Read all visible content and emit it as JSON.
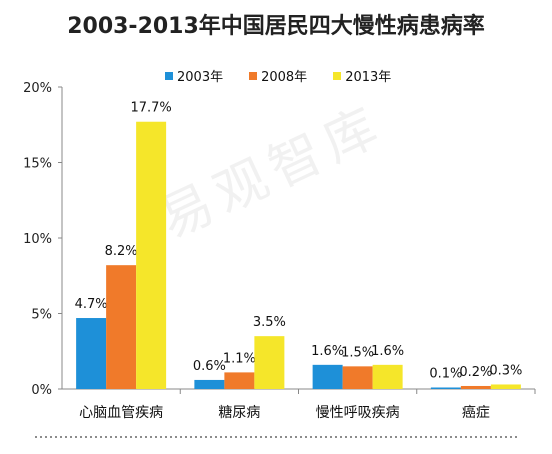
{
  "chart_data": {
    "type": "bar",
    "title": "2003-2013年中国居民四大慢性病患病率",
    "categories": [
      "心脑血管疾病",
      "糖尿病",
      "慢性呼吸疾病",
      "癌症"
    ],
    "series": [
      {
        "name": "2003年",
        "color": "#1e90d8",
        "values": [
          4.7,
          0.6,
          1.6,
          0.1
        ]
      },
      {
        "name": "2008年",
        "color": "#f07a2a",
        "values": [
          8.2,
          1.1,
          1.5,
          0.2
        ]
      },
      {
        "name": "2013年",
        "color": "#f5e62a",
        "values": [
          17.7,
          3.5,
          1.6,
          0.3
        ]
      }
    ],
    "data_labels": [
      [
        "4.7%",
        "0.6%",
        "1.6%",
        "0.1%"
      ],
      [
        "8.2%",
        "1.1%",
        "1.5%",
        "0.2%"
      ],
      [
        "17.7%",
        "3.5%",
        "1.6%",
        "0.3%"
      ]
    ],
    "yticks": [
      "0%",
      "5%",
      "10%",
      "15%",
      "20%"
    ],
    "ylim": [
      0,
      20
    ],
    "legend_position": "top",
    "grid": false
  },
  "watermark": "易观智库"
}
